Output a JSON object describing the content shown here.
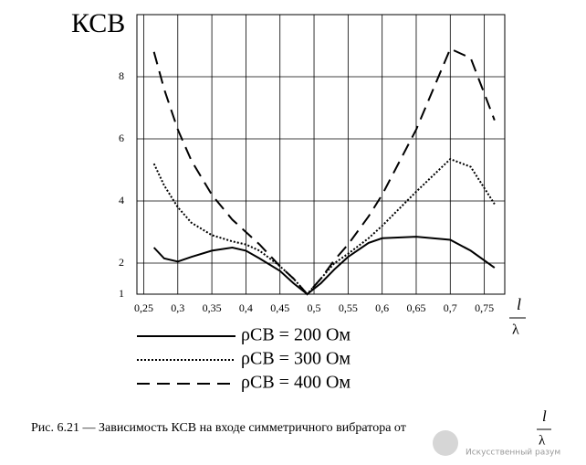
{
  "chart_data": {
    "type": "line",
    "y_label": "КСВ",
    "x_label": {
      "numerator": "l",
      "denominator": "λ"
    },
    "x": [
      0.265,
      0.28,
      0.3,
      0.32,
      0.35,
      0.38,
      0.4,
      0.42,
      0.45,
      0.47,
      0.49,
      0.51,
      0.53,
      0.55,
      0.58,
      0.6,
      0.65,
      0.7,
      0.73,
      0.765
    ],
    "series": [
      {
        "name": "ρСВ = 200 Ом",
        "color": "#000000",
        "style": "solid",
        "values": [
          2.5,
          2.15,
          2.05,
          2.2,
          2.4,
          2.5,
          2.4,
          2.15,
          1.75,
          1.35,
          1.0,
          1.35,
          1.8,
          2.2,
          2.65,
          2.8,
          2.85,
          2.75,
          2.4,
          1.85
        ]
      },
      {
        "name": "ρСВ = 300 Ом",
        "color": "#000000",
        "style": "dotted",
        "values": [
          5.2,
          4.5,
          3.8,
          3.3,
          2.9,
          2.7,
          2.6,
          2.4,
          1.9,
          1.5,
          1.0,
          1.5,
          2.0,
          2.3,
          2.8,
          3.2,
          4.3,
          5.35,
          5.1,
          3.9
        ]
      },
      {
        "name": "ρСВ = 400 Ом",
        "color": "#000000",
        "style": "dashed",
        "values": [
          8.8,
          7.6,
          6.3,
          5.3,
          4.2,
          3.4,
          3.0,
          2.6,
          1.9,
          1.5,
          1.0,
          1.5,
          2.1,
          2.6,
          3.5,
          4.2,
          6.3,
          8.9,
          8.6,
          6.6
        ]
      }
    ],
    "xlim": [
      0.24,
      0.78
    ],
    "ylim": [
      1,
      10
    ],
    "xticks": [
      {
        "value": 0.25,
        "label": "0,25"
      },
      {
        "value": 0.3,
        "label": "0,3"
      },
      {
        "value": 0.35,
        "label": "0,35"
      },
      {
        "value": 0.4,
        "label": "0,4"
      },
      {
        "value": 0.45,
        "label": "0,45"
      },
      {
        "value": 0.5,
        "label": "0,5"
      },
      {
        "value": 0.55,
        "label": "0,55"
      },
      {
        "value": 0.6,
        "label": "0,6"
      },
      {
        "value": 0.65,
        "label": "0,65"
      },
      {
        "value": 0.7,
        "label": "0,7"
      },
      {
        "value": 0.75,
        "label": "0,75"
      }
    ],
    "yticks": [
      1,
      2,
      4,
      6,
      8
    ],
    "grid": true,
    "caption": "Рис. 6.21 — Зависимость КСВ на входе симметричного вибратора от",
    "caption_fraction": {
      "numerator": "l",
      "denominator": "λ"
    },
    "watermark": "Искусственный разум"
  }
}
